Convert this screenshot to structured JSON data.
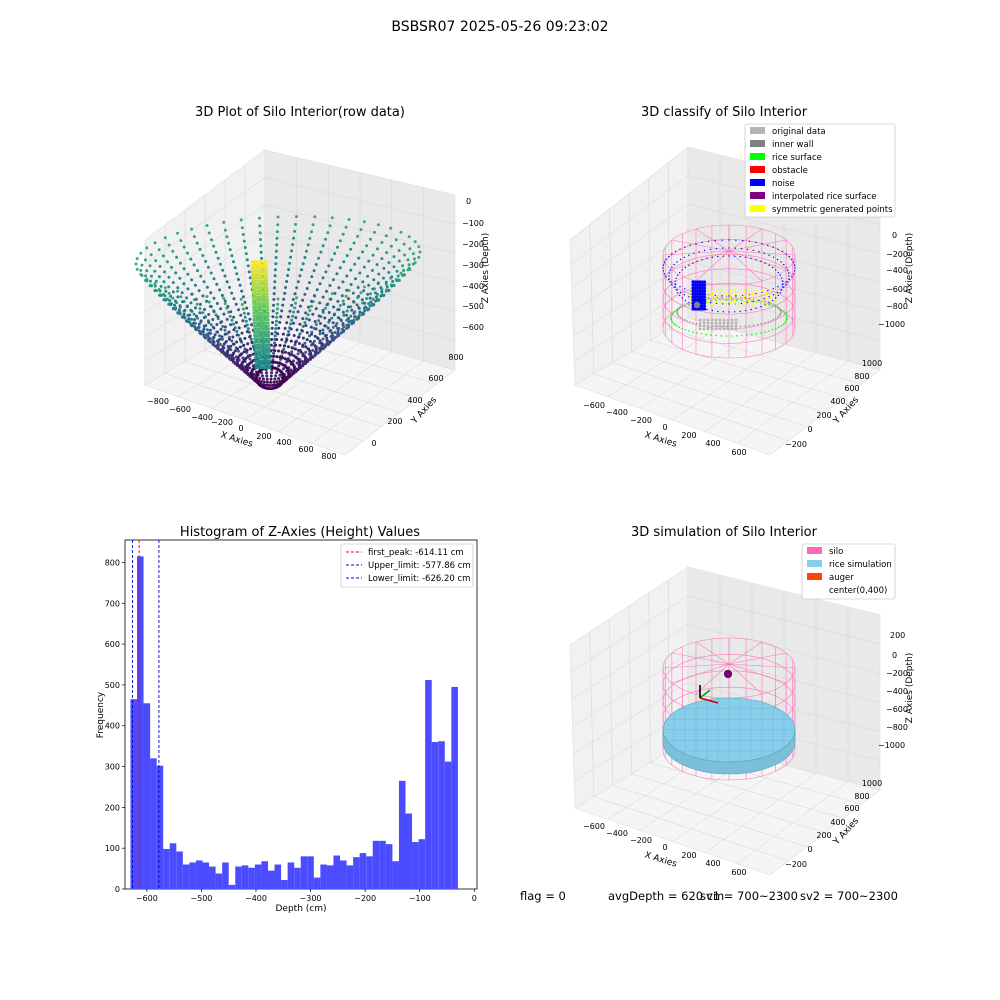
{
  "suptitle": "BSBSR07 2025-05-26 09:23:02",
  "panels": {
    "raw": {
      "title": "3D Plot of Silo Interior(row data)",
      "xlabel": "X Axies",
      "ylabel": "Y Axies",
      "zlabel": "Z Axies (Depth)",
      "x_ticks": [
        "−800",
        "−600",
        "−400",
        "−200",
        "0",
        "200",
        "400",
        "600",
        "800"
      ],
      "y_ticks": [
        "0",
        "200",
        "400",
        "600",
        "800"
      ],
      "z_ticks": [
        "0",
        "−100",
        "−200",
        "−300",
        "−400",
        "−500",
        "−600"
      ]
    },
    "classify": {
      "title": "3D classify of Silo Interior",
      "xlabel": "X Axies",
      "ylabel": "Y Axies",
      "zlabel": "Z Axies (Depth)",
      "x_ticks": [
        "−600",
        "−400",
        "−200",
        "0",
        "200",
        "400",
        "600"
      ],
      "y_ticks": [
        "−200",
        "0",
        "200",
        "400",
        "600",
        "800",
        "1000"
      ],
      "z_ticks": [
        "0",
        "−200",
        "−400",
        "−600",
        "−800",
        "−1000"
      ],
      "legend": [
        {
          "label": "original data",
          "color": "#b4b4b4"
        },
        {
          "label": "inner wall",
          "color": "#808080"
        },
        {
          "label": "rice surface",
          "color": "#00ff00"
        },
        {
          "label": "obstacle",
          "color": "#ff0000"
        },
        {
          "label": "noise",
          "color": "#0000ff"
        },
        {
          "label": "interpolated rice surface",
          "color": "#800080"
        },
        {
          "label": "symmetric generated points",
          "color": "#ffff00"
        }
      ]
    },
    "simulation": {
      "title": "3D simulation of Silo Interior",
      "xlabel": "X Axies",
      "ylabel": "Y Axies",
      "zlabel": "Z Axies (Depth)",
      "x_ticks": [
        "−600",
        "−400",
        "−200",
        "0",
        "200",
        "400",
        "600"
      ],
      "y_ticks": [
        "−200",
        "0",
        "200",
        "400",
        "600",
        "800",
        "1000"
      ],
      "z_ticks": [
        "200",
        "0",
        "−200",
        "−400",
        "−600",
        "−800",
        "−1000"
      ],
      "legend": [
        {
          "label": "silo",
          "color": "#ff69b4"
        },
        {
          "label": "rice simulation",
          "color": "#87ceeb"
        },
        {
          "label": "auger",
          "color": "#ff4500"
        },
        {
          "label": "center(0,400)",
          "color": ""
        }
      ]
    }
  },
  "chart_data": {
    "type": "bar",
    "title": "Histogram of Z-Axies (Height) Values",
    "xlabel": "Depth (cm)",
    "ylabel": "Frequency",
    "xlim": [
      -640,
      5
    ],
    "ylim": [
      0,
      855
    ],
    "x_ticks": [
      -600,
      -500,
      -400,
      -300,
      -200,
      -100,
      0
    ],
    "x_tick_labels": [
      "−600",
      "−500",
      "−400",
      "−300",
      "−200",
      "−100",
      "0"
    ],
    "y_ticks": [
      0,
      100,
      200,
      300,
      400,
      500,
      600,
      700,
      800
    ],
    "bar_color": "#4b4bff",
    "bins_start": -630,
    "bin_width": 12,
    "values": [
      465,
      815,
      455,
      320,
      302,
      98,
      112,
      92,
      60,
      65,
      70,
      65,
      55,
      38,
      65,
      10,
      55,
      58,
      52,
      60,
      68,
      45,
      60,
      22,
      65,
      52,
      80,
      80,
      28,
      60,
      58,
      82,
      70,
      58,
      78,
      88,
      80,
      118,
      118,
      110,
      68,
      265,
      185,
      115,
      122,
      512,
      360,
      362,
      312,
      495
    ],
    "vlines": [
      {
        "label": "first_peak: -614.11 cm",
        "x": -614.11,
        "color": "#ff0000"
      },
      {
        "label": "Upper_limit: -577.86 cm",
        "x": -577.86,
        "color": "#0000cd"
      },
      {
        "label": "Lower_limit: -626.20 cm",
        "x": -626.2,
        "color": "#0000cd"
      }
    ],
    "legend_position": "top-right"
  },
  "footer": {
    "flag": "flag = 0",
    "avg": "avgDepth = 620 cm",
    "sv1": "sv1 = 700~2300",
    "sv2": "sv2 = 700~2300"
  }
}
